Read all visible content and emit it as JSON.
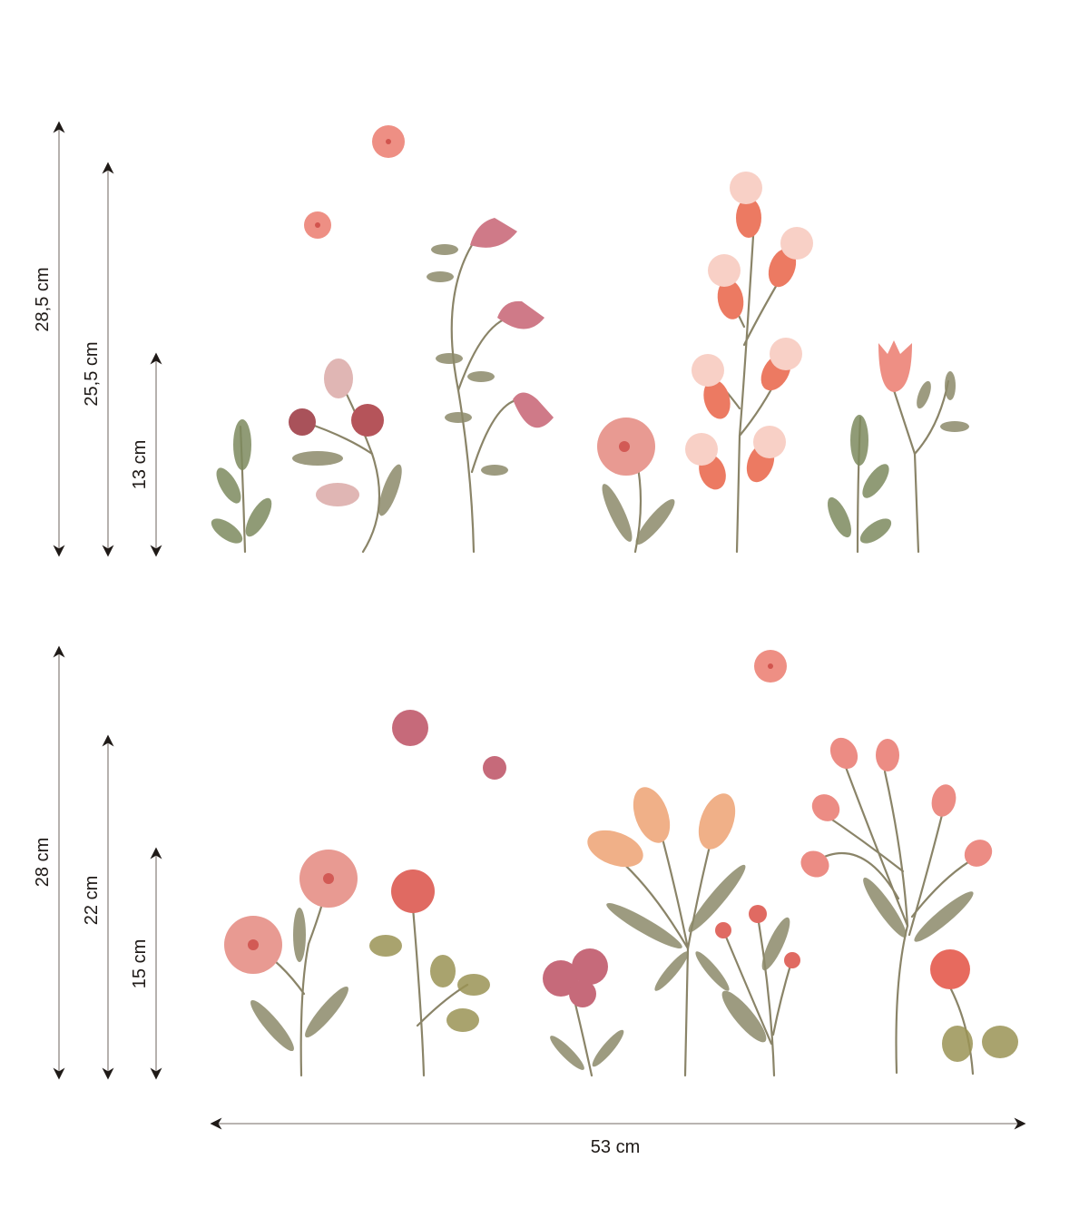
{
  "dimensions": {
    "top_set": {
      "heights": [
        "28,5 cm",
        "25,5 cm",
        "13 cm"
      ]
    },
    "bottom_set": {
      "heights": [
        "28 cm",
        "22 cm",
        "15 cm"
      ]
    },
    "width": "53 cm"
  },
  "colors": {
    "pink": "#e89a92",
    "coral": "#ec7a62",
    "rose": "#c66a7a",
    "peach": "#f0b088",
    "leaf": "#8c8a6a",
    "arrow": "#1f1a17"
  }
}
